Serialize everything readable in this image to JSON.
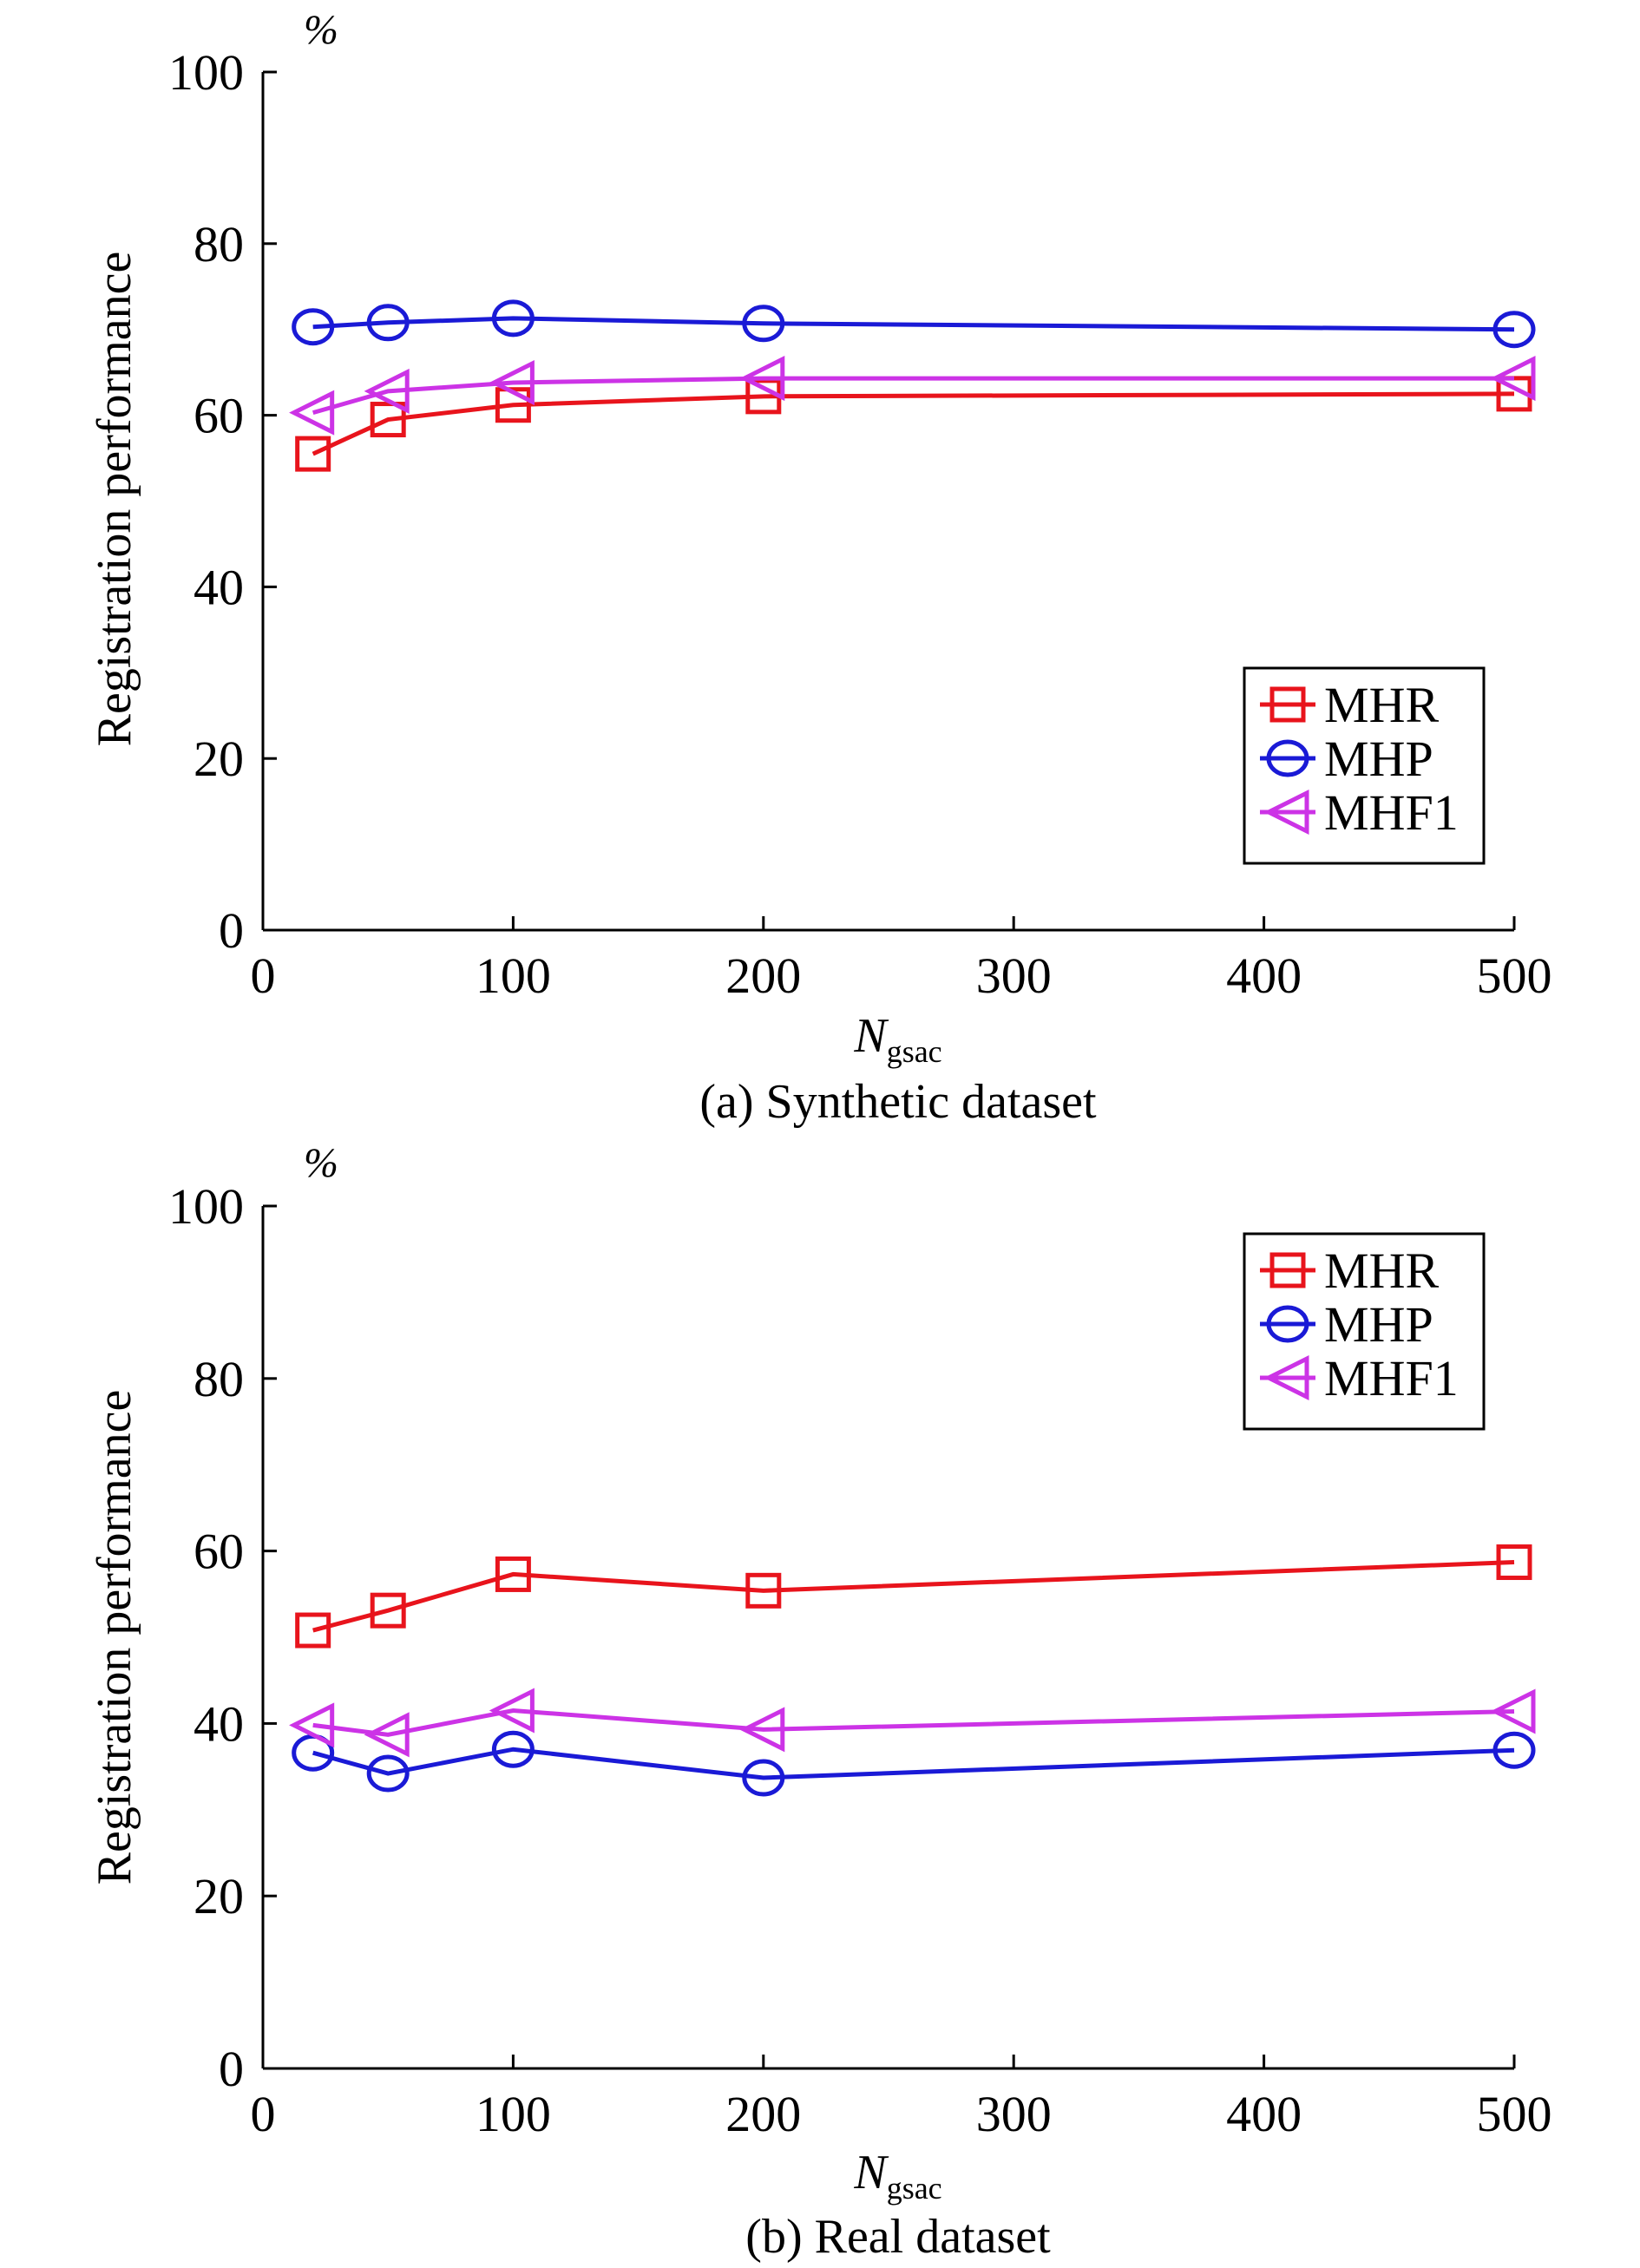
{
  "chart_data": [
    {
      "type": "line",
      "caption": "(a) Synthetic dataset",
      "unit_label": "%",
      "ylabel": "Registration performance",
      "xlabel_main": "N",
      "xlabel_sub": "gsac",
      "xlim": [
        0,
        500
      ],
      "ylim": [
        0,
        100
      ],
      "xticks": [
        0,
        100,
        200,
        300,
        400,
        500
      ],
      "yticks": [
        0,
        20,
        40,
        60,
        80,
        100
      ],
      "grid": false,
      "legend_position": "lower-right",
      "x": [
        20,
        50,
        100,
        200,
        500
      ],
      "series": [
        {
          "name": "MHR",
          "marker": "square",
          "color": "#e8141c",
          "values": [
            55.5,
            59.5,
            61.2,
            62.2,
            62.5
          ]
        },
        {
          "name": "MHP",
          "marker": "circle",
          "color": "#1a1ad6",
          "values": [
            70.3,
            70.8,
            71.3,
            70.7,
            70.0
          ]
        },
        {
          "name": "MHF1",
          "marker": "triangle-left",
          "color": "#cc33e6",
          "values": [
            60.3,
            62.8,
            63.8,
            64.3,
            64.3
          ]
        }
      ]
    },
    {
      "type": "line",
      "caption": "(b) Real dataset",
      "unit_label": "%",
      "ylabel": "Registration performance",
      "xlabel_main": "N",
      "xlabel_sub": "gsac",
      "xlim": [
        0,
        500
      ],
      "ylim": [
        0,
        100
      ],
      "xticks": [
        0,
        100,
        200,
        300,
        400,
        500
      ],
      "yticks": [
        0,
        20,
        40,
        60,
        80,
        100
      ],
      "grid": false,
      "legend_position": "top-right",
      "x": [
        20,
        50,
        100,
        200,
        500
      ],
      "series": [
        {
          "name": "MHR",
          "marker": "square",
          "color": "#e8141c",
          "values": [
            50.8,
            53.1,
            57.3,
            55.4,
            58.7
          ]
        },
        {
          "name": "MHP",
          "marker": "circle",
          "color": "#1a1ad6",
          "values": [
            36.6,
            34.2,
            37.0,
            33.7,
            36.9
          ]
        },
        {
          "name": "MHF1",
          "marker": "triangle-left",
          "color": "#cc33e6",
          "values": [
            39.8,
            38.7,
            41.5,
            39.3,
            41.4
          ]
        }
      ]
    }
  ]
}
